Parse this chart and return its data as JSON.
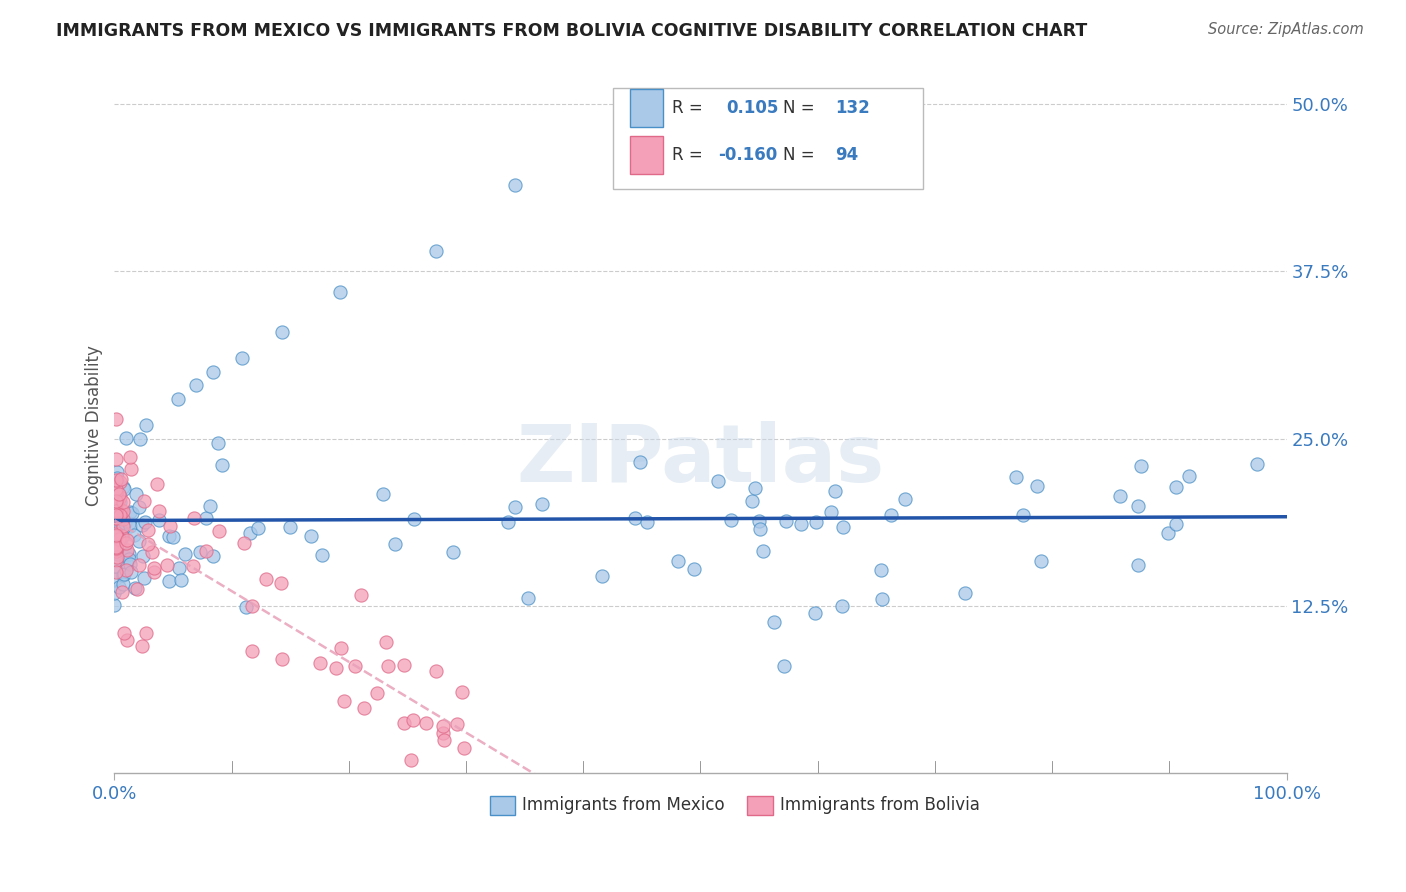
{
  "title": "IMMIGRANTS FROM MEXICO VS IMMIGRANTS FROM BOLIVIA COGNITIVE DISABILITY CORRELATION CHART",
  "source": "Source: ZipAtlas.com",
  "ylabel": "Cognitive Disability",
  "xlim": [
    0.0,
    1.0
  ],
  "ylim": [
    0.0,
    0.52
  ],
  "yticks": [
    0.0,
    0.125,
    0.25,
    0.375,
    0.5
  ],
  "ytick_labels": [
    "",
    "12.5%",
    "25.0%",
    "37.5%",
    "50.0%"
  ],
  "xtick_left": "0.0%",
  "xtick_right": "100.0%",
  "legend_mexico_R": "0.105",
  "legend_mexico_N": "132",
  "legend_bolivia_R": "-0.160",
  "legend_bolivia_N": "94",
  "color_mexico_fill": "#aac8e8",
  "color_mexico_edge": "#4a90c8",
  "color_bolivia_fill": "#f4a0b8",
  "color_bolivia_edge": "#e06888",
  "color_mexico_line": "#2255aa",
  "color_bolivia_line": "#e8a0b8",
  "watermark": "ZIPatlas",
  "grid_color": "#cccccc",
  "bottom_legend_mexico": "Immigrants from Mexico",
  "bottom_legend_bolivia": "Immigrants from Bolivia"
}
